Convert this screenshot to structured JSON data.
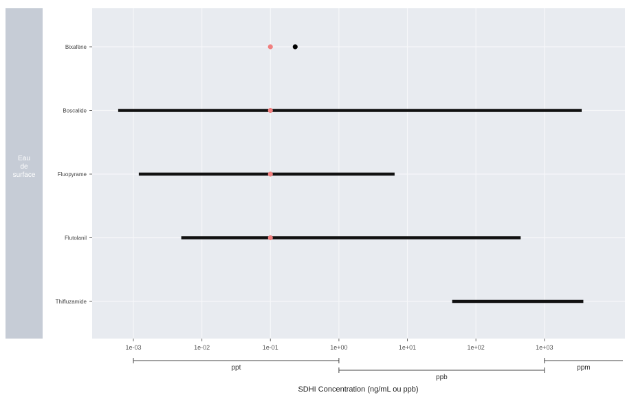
{
  "chart_data": {
    "type": "scatter",
    "title": "",
    "xlabel": "SDHI Concentration (ng/mL ou ppb)",
    "ylabel": "",
    "x_scale": "log10",
    "xlim": [
      0.00025,
      15000
    ],
    "x_ticks": [
      0.001,
      0.01,
      0.1,
      1,
      10,
      100,
      1000
    ],
    "x_tick_labels": [
      "1e-03",
      "1e-02",
      "1e-01",
      "1e+00",
      "1e+01",
      "1e+02",
      "1e+03"
    ],
    "facet_label": "Eau de surface",
    "categories": [
      "Bixafène",
      "Boscalide",
      "Fluopyrame",
      "Flutolanil",
      "Thifluzamide"
    ],
    "ranges": [
      {
        "category": "Boscalide",
        "min": 0.0006,
        "max": 3500
      },
      {
        "category": "Fluopyrame",
        "min": 0.0012,
        "max": 6.5
      },
      {
        "category": "Flutolanil",
        "min": 0.005,
        "max": 450
      },
      {
        "category": "Thifluzamide",
        "min": 45,
        "max": 3700
      }
    ],
    "points": [
      {
        "category": "Bixafène",
        "x": 0.1,
        "color": "#f08080"
      },
      {
        "category": "Bixafène",
        "x": 0.23,
        "color": "#000000"
      },
      {
        "category": "Boscalide",
        "x": 0.1,
        "color": "#f08080"
      },
      {
        "category": "Fluopyrame",
        "x": 0.1,
        "color": "#f08080"
      },
      {
        "category": "Flutolanil",
        "x": 0.1,
        "color": "#f08080"
      }
    ],
    "unit_brackets": [
      {
        "label": "ppt",
        "from": 0.001,
        "to": 1
      },
      {
        "label": "ppb",
        "from": 1,
        "to": 1000
      },
      {
        "label": "ppm",
        "from": 1000,
        "to": 15000
      }
    ],
    "grid": true,
    "panel_color": "#e8ebf0",
    "strip_color": "#c6ccd6"
  }
}
